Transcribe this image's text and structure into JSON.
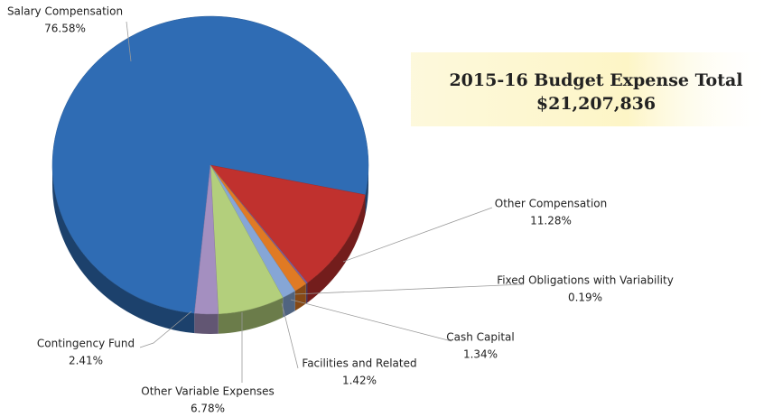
{
  "chart_data": {
    "type": "pie",
    "title": "2015-16 Budget Expense Total",
    "subtitle": "$21,207,836",
    "categories": [
      "Salary Compensation",
      "Other Compensation",
      "Fixed Obligations with Variability",
      "Cash Capital",
      "Facilities and Related",
      "Other Variable Expenses",
      "Contingency Fund"
    ],
    "values": [
      76.58,
      11.28,
      0.19,
      1.34,
      1.42,
      6.78,
      2.41
    ],
    "value_labels": [
      "76.58%",
      "11.28%",
      "0.19%",
      "1.34%",
      "1.42%",
      "6.78%",
      "2.41%"
    ],
    "colors": [
      "#2f6cb4",
      "#c0312e",
      "#7d5f9a",
      "#e07a24",
      "#86a6d6",
      "#b3cf7c",
      "#a48fc0"
    ]
  }
}
